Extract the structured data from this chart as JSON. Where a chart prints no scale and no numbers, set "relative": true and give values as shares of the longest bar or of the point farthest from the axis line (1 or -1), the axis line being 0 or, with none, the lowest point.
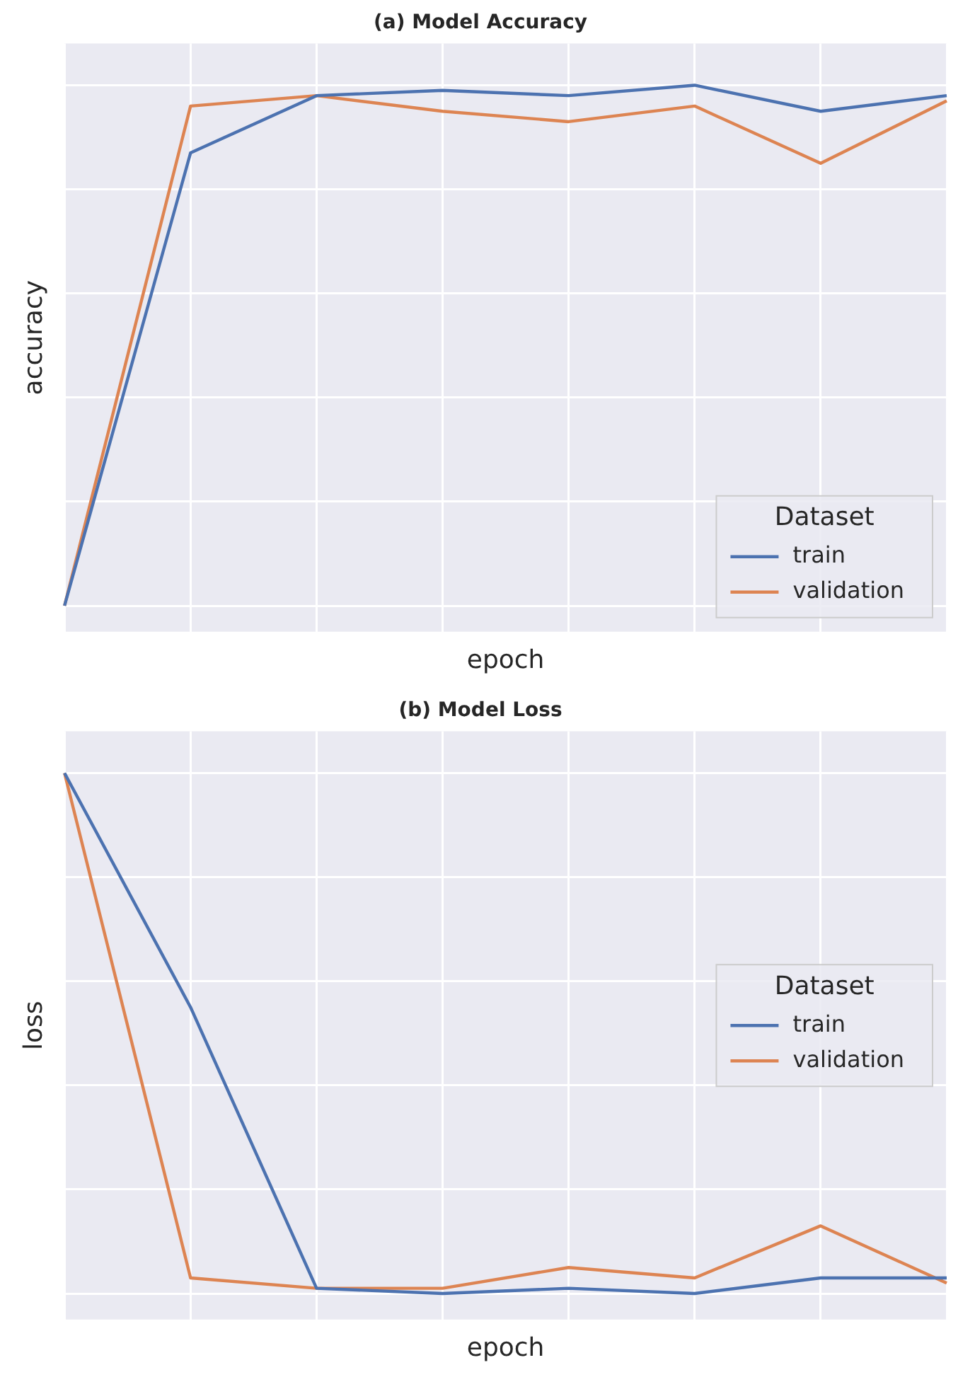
{
  "chart_data": [
    {
      "type": "line",
      "title": "(a) Model Accuracy",
      "xlabel": "epoch",
      "ylabel": "accuracy",
      "relative": true,
      "categories": [
        null,
        null,
        null,
        null,
        null,
        null,
        null,
        null
      ],
      "series": [
        {
          "name": "train",
          "color": "#4c72b0",
          "values": [
            0,
            0.87,
            0.98,
            0.99,
            0.98,
            1,
            0.95,
            0.98
          ]
        },
        {
          "name": "validation",
          "color": "#dd8452",
          "values": [
            0,
            0.96,
            0.98,
            0.95,
            0.93,
            0.96,
            0.85,
            0.97
          ]
        }
      ],
      "legend": "bottom right",
      "legend_title": "Dataset",
      "grid": true,
      "tick_labels": false,
      "marker": "none",
      "line_style": "solid"
    },
    {
      "type": "line",
      "title": "(b) Model Loss",
      "xlabel": "epoch",
      "ylabel": "loss",
      "relative": true,
      "categories": [
        null,
        null,
        null,
        null,
        null,
        null,
        null,
        null
      ],
      "series": [
        {
          "name": "train",
          "color": "#4c72b0",
          "values": [
            1,
            0.55,
            0.01,
            0,
            0.01,
            0,
            0.03,
            0.03
          ]
        },
        {
          "name": "validation",
          "color": "#dd8452",
          "values": [
            1,
            0.03,
            0.01,
            0.01,
            0.05,
            0.03,
            0.13,
            0.02
          ]
        }
      ],
      "legend": "right",
      "legend_title": "Dataset",
      "grid": true,
      "tick_labels": false,
      "marker": "none",
      "line_style": "solid"
    }
  ]
}
